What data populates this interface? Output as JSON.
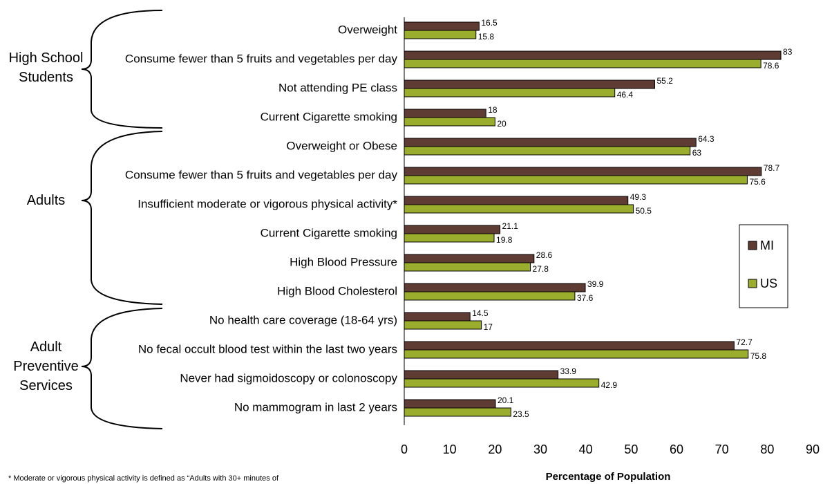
{
  "chart_data": {
    "type": "bar",
    "orientation": "horizontal",
    "categories": [
      "Overweight",
      "Consume fewer than 5 fruits and vegetables per day",
      "Not attending PE class",
      "Current Cigarette smoking",
      "Overweight or Obese",
      "Consume fewer than 5 fruits and vegetables per day",
      "Insufficient moderate or vigorous physical activity*",
      "Current Cigarette smoking",
      "High Blood Pressure",
      "High Blood Cholesterol",
      "No health care coverage (18-64 yrs)",
      "No fecal occult blood test within the last two years",
      "Never had sigmoidoscopy or colonoscopy",
      "No mammogram in last 2 years"
    ],
    "series": [
      {
        "name": "MI",
        "color": "#5e3b33",
        "values": [
          16.5,
          83,
          55.2,
          18,
          64.3,
          78.7,
          49.3,
          21.1,
          28.6,
          39.9,
          14.5,
          72.7,
          33.9,
          20.1
        ]
      },
      {
        "name": "US",
        "color": "#9bad2c",
        "values": [
          15.8,
          78.6,
          46.4,
          20,
          63,
          75.6,
          50.5,
          19.8,
          27.8,
          37.6,
          17,
          75.8,
          42.9,
          23.5
        ]
      }
    ],
    "groups": [
      "High School Students",
      "Adults",
      "Adult Preventive Services"
    ],
    "xlim": [
      0,
      90
    ],
    "xticks": [
      0,
      10,
      20,
      30,
      40,
      50,
      60,
      70,
      80,
      90
    ],
    "xlabel": "Percentage of Population",
    "footnote": "* Moderate or vigorous physical activity is defined as “Adults with 30+ minutes of",
    "legend": "right"
  }
}
